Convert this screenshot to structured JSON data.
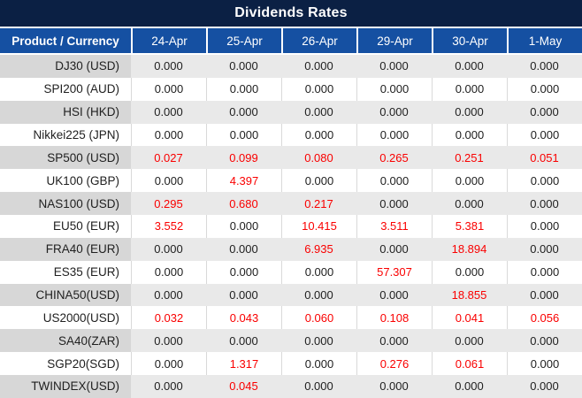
{
  "title": "Dividends Rates",
  "colors": {
    "title_bg": "#0b2044",
    "header_bg": "#1550a2",
    "stripe_bg": "#e9e9e9",
    "stripe_label_bg": "#d7d7d7",
    "grid_line": "#d9d9d9",
    "text_dark": "#212121",
    "value_red": "#fa0000"
  },
  "chart_data": {
    "type": "table",
    "title": "Dividends Rates",
    "columns": [
      "Product / Currency",
      "24-Apr",
      "25-Apr",
      "26-Apr",
      "29-Apr",
      "30-Apr",
      "1-May"
    ],
    "rows": [
      {
        "product": "DJ30 (USD)",
        "values": [
          "0.000",
          "0.000",
          "0.000",
          "0.000",
          "0.000",
          "0.000"
        ]
      },
      {
        "product": "SPI200 (AUD)",
        "values": [
          "0.000",
          "0.000",
          "0.000",
          "0.000",
          "0.000",
          "0.000"
        ]
      },
      {
        "product": "HSI (HKD)",
        "values": [
          "0.000",
          "0.000",
          "0.000",
          "0.000",
          "0.000",
          "0.000"
        ]
      },
      {
        "product": "Nikkei225 (JPN)",
        "values": [
          "0.000",
          "0.000",
          "0.000",
          "0.000",
          "0.000",
          "0.000"
        ]
      },
      {
        "product": "SP500 (USD)",
        "values": [
          "0.027",
          "0.099",
          "0.080",
          "0.265",
          "0.251",
          "0.051"
        ]
      },
      {
        "product": "UK100 (GBP)",
        "values": [
          "0.000",
          "4.397",
          "0.000",
          "0.000",
          "0.000",
          "0.000"
        ]
      },
      {
        "product": "NAS100 (USD)",
        "values": [
          "0.295",
          "0.680",
          "0.217",
          "0.000",
          "0.000",
          "0.000"
        ]
      },
      {
        "product": "EU50 (EUR)",
        "values": [
          "3.552",
          "0.000",
          "10.415",
          "3.511",
          "5.381",
          "0.000"
        ]
      },
      {
        "product": "FRA40 (EUR)",
        "values": [
          "0.000",
          "0.000",
          "6.935",
          "0.000",
          "18.894",
          "0.000"
        ]
      },
      {
        "product": "ES35 (EUR)",
        "values": [
          "0.000",
          "0.000",
          "0.000",
          "57.307",
          "0.000",
          "0.000"
        ]
      },
      {
        "product": "CHINA50(USD)",
        "values": [
          "0.000",
          "0.000",
          "0.000",
          "0.000",
          "18.855",
          "0.000"
        ]
      },
      {
        "product": "US2000(USD)",
        "values": [
          "0.032",
          "0.043",
          "0.060",
          "0.108",
          "0.041",
          "0.056"
        ]
      },
      {
        "product": "SA40(ZAR)",
        "values": [
          "0.000",
          "0.000",
          "0.000",
          "0.000",
          "0.000",
          "0.000"
        ]
      },
      {
        "product": "SGP20(SGD)",
        "values": [
          "0.000",
          "1.317",
          "0.000",
          "0.276",
          "0.061",
          "0.000"
        ]
      },
      {
        "product": "TWINDEX(USD)",
        "values": [
          "0.000",
          "0.045",
          "0.000",
          "0.000",
          "0.000",
          "0.000"
        ]
      }
    ],
    "style_note": "non-zero dividend values are shown in red; zero values in dark gray/black; rows alternate gray/white banding"
  }
}
